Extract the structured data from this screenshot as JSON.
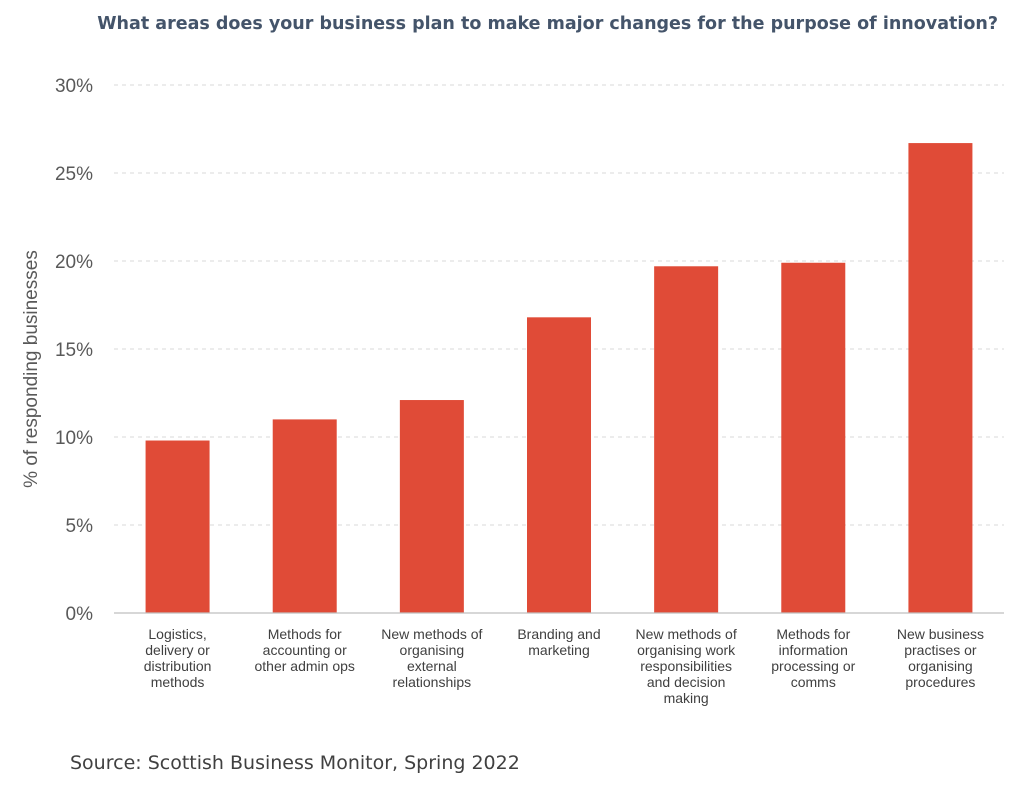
{
  "chart_data": {
    "type": "bar",
    "title": "What areas does your business plan to make major changes for the purpose of innovation?",
    "ylabel": "% of responding businesses",
    "xlabel": "",
    "ylim": [
      0,
      30
    ],
    "yticks": [
      0,
      5,
      10,
      15,
      20,
      25,
      30
    ],
    "ytick_labels": [
      "0%",
      "5%",
      "10%",
      "15%",
      "20%",
      "25%",
      "30%"
    ],
    "grid": true,
    "categories": [
      [
        "Logistics,",
        "delivery or",
        "distribution",
        "methods"
      ],
      [
        "Methods for",
        "accounting or",
        "other admin ops"
      ],
      [
        "New methods of",
        "organising",
        "external",
        "relationships"
      ],
      [
        "Branding and",
        "marketing"
      ],
      [
        "New methods of",
        "organising work",
        "responsibilities",
        "and decision",
        "making"
      ],
      [
        "Methods for",
        "information",
        "processing or",
        "comms"
      ],
      [
        "New business",
        "practises or",
        "organising",
        "procedures"
      ]
    ],
    "values": [
      9.8,
      11.0,
      12.1,
      16.8,
      19.7,
      19.9,
      26.7
    ],
    "bar_color": "#e04b37",
    "source": "Source: Scottish Business Monitor, Spring 2022"
  }
}
